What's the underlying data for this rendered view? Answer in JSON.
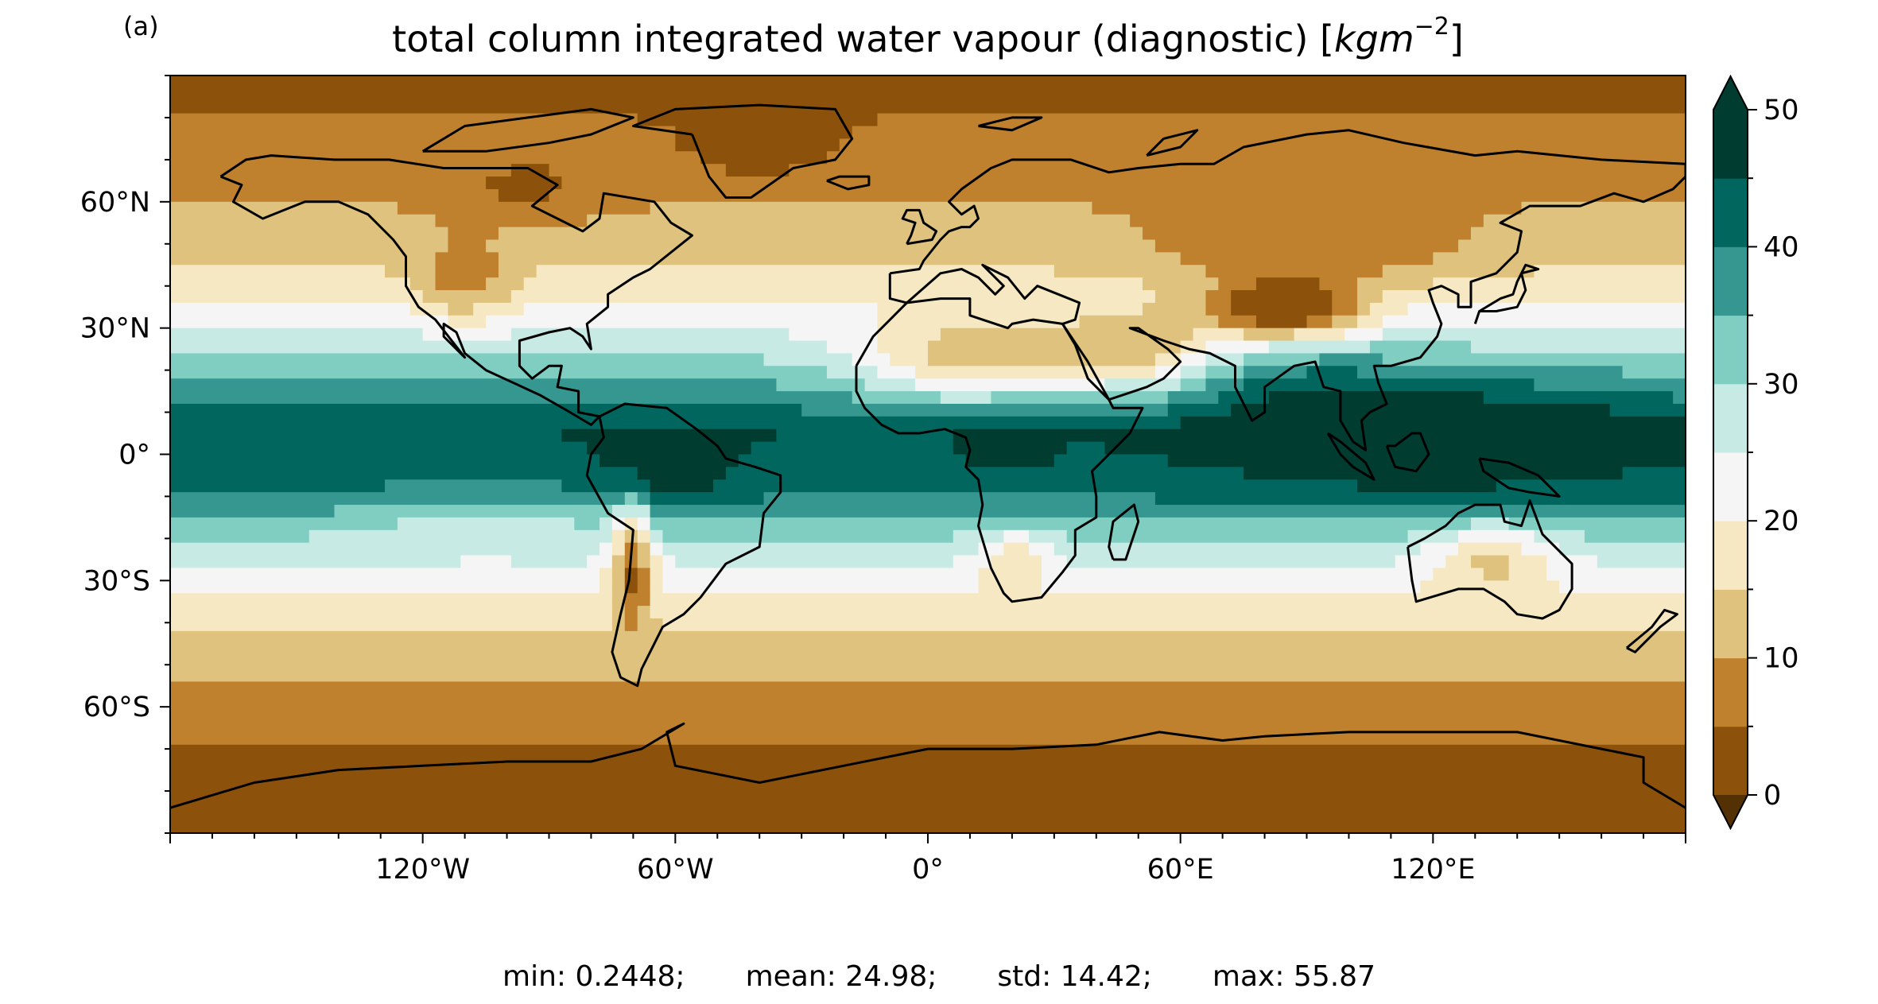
{
  "panel_label": "(a)",
  "title_text": "total column integrated water vapour (diagnostic) [",
  "title_unit": "kgm",
  "title_unit_exp": "−2",
  "title_close": "]",
  "stats": {
    "min": "min: 0.2448;",
    "mean": "mean: 24.98;",
    "std": "std: 14.42;",
    "max": "max: 55.87"
  },
  "lat_ticks": [
    {
      "label": "60°N",
      "value": 60
    },
    {
      "label": "30°N",
      "value": 30
    },
    {
      "label": "0°",
      "value": 0
    },
    {
      "label": "30°S",
      "value": -30
    },
    {
      "label": "60°S",
      "value": -60
    }
  ],
  "lon_ticks": [
    {
      "label": "120°W",
      "value": -120
    },
    {
      "label": "60°W",
      "value": -60
    },
    {
      "label": "0°",
      "value": 0
    },
    {
      "label": "60°E",
      "value": 60
    },
    {
      "label": "120°E",
      "value": 120
    }
  ],
  "colorbar": {
    "levels": [
      0,
      5,
      10,
      15,
      20,
      25,
      30,
      35,
      40,
      45,
      50
    ],
    "tick_labels": [
      "0",
      "10",
      "20",
      "30",
      "40",
      "50"
    ],
    "extend": "both",
    "colors": [
      "#543005",
      "#8c510a",
      "#bf812d",
      "#dfc27d",
      "#f6e8c3",
      "#f5f5f5",
      "#c7eae5",
      "#80cdc1",
      "#35978f",
      "#01665e",
      "#003c30"
    ]
  },
  "chart_data": {
    "type": "heatmap",
    "projection": "PlateCarree",
    "lon_range": [
      -180,
      180
    ],
    "lat_range": [
      -90,
      90
    ],
    "variable": "total column integrated water vapour (diagnostic)",
    "units": "kg m-2",
    "zonal_mean_profile": [
      {
        "lat": 90,
        "value": 3
      },
      {
        "lat": 75,
        "value": 6
      },
      {
        "lat": 60,
        "value": 10
      },
      {
        "lat": 45,
        "value": 15
      },
      {
        "lat": 30,
        "value": 25
      },
      {
        "lat": 15,
        "value": 37
      },
      {
        "lat": 5,
        "value": 45
      },
      {
        "lat": 0,
        "value": 44
      },
      {
        "lat": -10,
        "value": 40
      },
      {
        "lat": -20,
        "value": 30
      },
      {
        "lat": -30,
        "value": 22
      },
      {
        "lat": -45,
        "value": 14
      },
      {
        "lat": -60,
        "value": 8
      },
      {
        "lat": -75,
        "value": 3
      },
      {
        "lat": -90,
        "value": 1
      }
    ]
  }
}
